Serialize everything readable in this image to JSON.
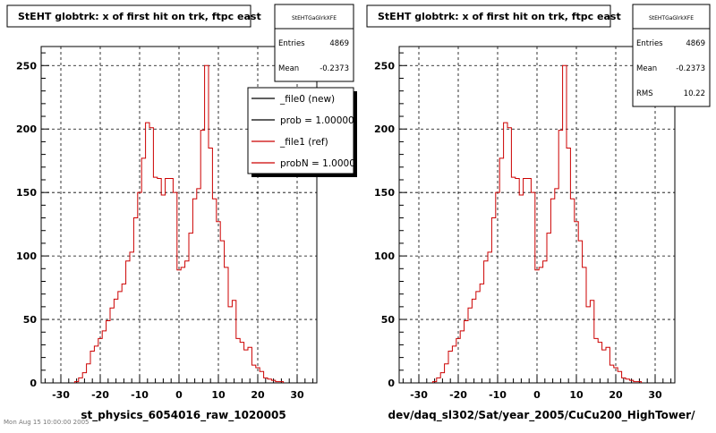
{
  "panels": [
    {
      "title": "StEHT globtrk: x of first hit on trk, ftpc east",
      "xlabel": "st_physics_6054016_raw_1020005",
      "stats": {
        "name": "StEHTGaGlrkXFE",
        "rows": [
          {
            "label": "Entries",
            "value": "4869"
          },
          {
            "label": "Mean",
            "value": "-0.2373"
          }
        ]
      },
      "legend": {
        "entries": [
          {
            "label": "_file0 (new)",
            "color": "#000000"
          },
          {
            "label": "prob = 1.000000",
            "color": "#000000"
          },
          {
            "label": "_file1 (ref)",
            "color": "#cc0000"
          },
          {
            "label": "probN = 1.000000",
            "color": "#cc0000"
          }
        ]
      }
    },
    {
      "title": "StEHT globtrk: x of first hit on trk, ftpc east",
      "xlabel": "dev/daq_sl302/Sat/year_2005/CuCu200_HighTower/",
      "stats": {
        "name": "StEHTGaGlrkXFE",
        "rows": [
          {
            "label": "Entries",
            "value": "4869"
          },
          {
            "label": "Mean",
            "value": "-0.2373"
          },
          {
            "label": "RMS",
            "value": "10.22"
          }
        ]
      },
      "legend": null
    }
  ],
  "footer": "Mon Aug 15 10:00:00 2005",
  "chart_data": [
    {
      "type": "histogram",
      "title": "StEHT globtrk: x of first hit on trk, ftpc east",
      "xlabel": "st_physics_6054016_raw_1020005",
      "ylabel": "",
      "xlim": [
        -35,
        35
      ],
      "ylim": [
        0,
        265
      ],
      "xticks": [
        -30,
        -20,
        -10,
        0,
        10,
        20,
        30
      ],
      "yticks": [
        0,
        50,
        100,
        150,
        200,
        250
      ],
      "grid": true,
      "bin_width": 1,
      "x": [
        -26,
        -25,
        -24,
        -23,
        -22,
        -21,
        -20,
        -19,
        -18,
        -17,
        -16,
        -15,
        -14,
        -13,
        -12,
        -11,
        -10,
        -9,
        -8,
        -7,
        -6,
        -5,
        -4,
        -3,
        -2,
        -1,
        0,
        1,
        2,
        3,
        4,
        5,
        6,
        7,
        8,
        9,
        10,
        11,
        12,
        13,
        14,
        15,
        16,
        17,
        18,
        19,
        20,
        21,
        22,
        23,
        24,
        25,
        26
      ],
      "series": [
        {
          "color": "#cc0000",
          "values": [
            1,
            4,
            8,
            15,
            25,
            29,
            35,
            41,
            49,
            59,
            66,
            72,
            78,
            96,
            103,
            130,
            150,
            177,
            205,
            201,
            162,
            161,
            148,
            161,
            161,
            150,
            89,
            91,
            96,
            118,
            145,
            153,
            199,
            250,
            185,
            145,
            127,
            112,
            91,
            60,
            65,
            35,
            32,
            26,
            28,
            14,
            12,
            9,
            4,
            3,
            2,
            1,
            1
          ]
        }
      ],
      "stats": {
        "Entries": 4869,
        "Mean": -0.2373
      }
    },
    {
      "type": "histogram",
      "title": "StEHT globtrk: x of first hit on trk, ftpc east",
      "xlabel": "dev/daq_sl302/Sat/year_2005/CuCu200_HighTower/",
      "ylabel": "",
      "xlim": [
        -35,
        35
      ],
      "ylim": [
        0,
        265
      ],
      "xticks": [
        -30,
        -20,
        -10,
        0,
        10,
        20,
        30
      ],
      "yticks": [
        0,
        50,
        100,
        150,
        200,
        250
      ],
      "grid": true,
      "bin_width": 1,
      "x": [
        -26,
        -25,
        -24,
        -23,
        -22,
        -21,
        -20,
        -19,
        -18,
        -17,
        -16,
        -15,
        -14,
        -13,
        -12,
        -11,
        -10,
        -9,
        -8,
        -7,
        -6,
        -5,
        -4,
        -3,
        -2,
        -1,
        0,
        1,
        2,
        3,
        4,
        5,
        6,
        7,
        8,
        9,
        10,
        11,
        12,
        13,
        14,
        15,
        16,
        17,
        18,
        19,
        20,
        21,
        22,
        23,
        24,
        25,
        26
      ],
      "series": [
        {
          "color": "#cc0000",
          "values": [
            1,
            4,
            8,
            15,
            25,
            29,
            35,
            41,
            49,
            59,
            66,
            72,
            78,
            96,
            103,
            130,
            150,
            177,
            205,
            201,
            162,
            161,
            148,
            161,
            161,
            150,
            89,
            91,
            96,
            118,
            145,
            153,
            199,
            250,
            185,
            145,
            127,
            112,
            91,
            60,
            65,
            35,
            32,
            26,
            28,
            14,
            12,
            9,
            4,
            3,
            2,
            1,
            1
          ]
        }
      ],
      "stats": {
        "Entries": 4869,
        "Mean": -0.2373,
        "RMS": 10.22
      }
    }
  ]
}
